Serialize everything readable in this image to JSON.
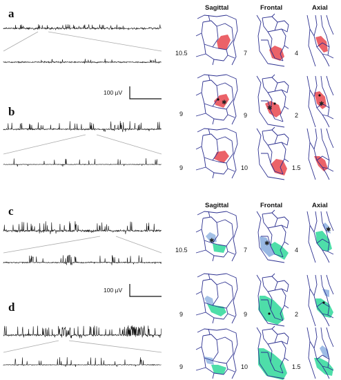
{
  "panels": {
    "a": "a",
    "b": "b",
    "c": "c",
    "d": "d"
  },
  "scalebars": {
    "top": "100 µV",
    "bottom": "100 µV"
  },
  "columns": [
    "Sagittal",
    "Frontal",
    "Axial"
  ],
  "top_group": {
    "headers": [
      "Sagittal",
      "Frontal",
      "Axial"
    ],
    "rows": [
      [
        "10.5",
        "7",
        "4"
      ],
      [
        "9",
        "9",
        "2"
      ],
      [
        "9",
        "10",
        "1.5"
      ]
    ],
    "highlight_color": "#e8474d"
  },
  "bottom_group": {
    "headers": [
      "Sagittal",
      "Frontal",
      "Axial"
    ],
    "rows": [
      [
        "10.5",
        "7",
        "4"
      ],
      [
        "9",
        "9",
        "2"
      ],
      [
        "9",
        "10",
        "1.5"
      ]
    ],
    "highlight_colors": [
      "#2fd89a",
      "#7ea6dc"
    ]
  },
  "colors": {
    "trace": "#111111",
    "atlas_line": "#2b2f8f",
    "red_region": "#e8474d",
    "green_region": "#2fd89a",
    "blue_region": "#7ea6dc",
    "zoom_line": "#aaaaaa"
  }
}
